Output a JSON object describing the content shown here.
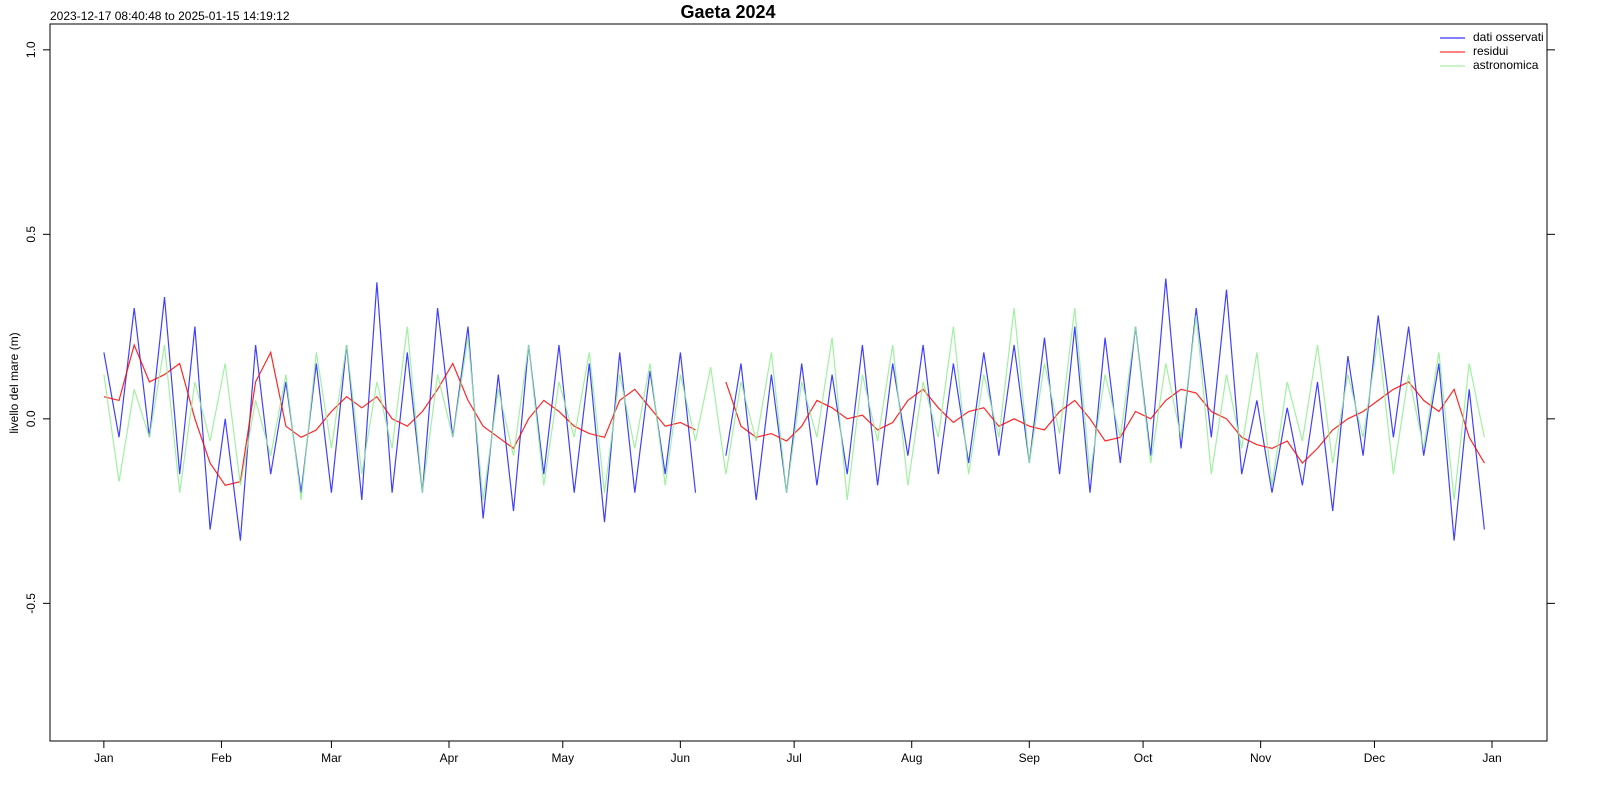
{
  "chart_data": {
    "type": "line",
    "title": "Gaeta 2024",
    "subtitle": "2023-12-17 08:40:48 to 2025-01-15 14:19:12",
    "y_label": "livello del mare (m)",
    "xlim": [
      -14.2,
      380.5
    ],
    "ylim": [
      -0.873,
      1.07
    ],
    "xticks": [
      {
        "value": 0,
        "label": "Jan"
      },
      {
        "value": 31,
        "label": "Feb"
      },
      {
        "value": 60,
        "label": "Mar"
      },
      {
        "value": 91,
        "label": "Apr"
      },
      {
        "value": 121,
        "label": "May"
      },
      {
        "value": 152,
        "label": "Jun"
      },
      {
        "value": 182,
        "label": "Jul"
      },
      {
        "value": 213,
        "label": "Aug"
      },
      {
        "value": 244,
        "label": "Sep"
      },
      {
        "value": 274,
        "label": "Oct"
      },
      {
        "value": 305,
        "label": "Nov"
      },
      {
        "value": 335,
        "label": "Dec"
      },
      {
        "value": 366,
        "label": "Jan"
      }
    ],
    "yticks": [
      -0.5,
      {
        "value": 0,
        "label": "0.0"
      },
      0.5,
      {
        "value": 1,
        "label": "1.0"
      }
    ],
    "legend": "topright",
    "x": [
      0,
      4,
      8,
      12,
      16,
      20,
      24,
      28,
      32,
      36,
      40,
      44,
      48,
      52,
      56,
      60,
      64,
      68,
      72,
      76,
      80,
      84,
      88,
      92,
      96,
      100,
      104,
      108,
      112,
      116,
      120,
      124,
      128,
      132,
      136,
      140,
      144,
      148,
      152,
      156,
      160,
      164,
      168,
      172,
      176,
      180,
      184,
      188,
      192,
      196,
      200,
      204,
      208,
      212,
      216,
      220,
      224,
      228,
      232,
      236,
      240,
      244,
      248,
      252,
      256,
      260,
      264,
      268,
      272,
      276,
      280,
      284,
      288,
      292,
      296,
      300,
      304,
      308,
      312,
      316,
      320,
      324,
      328,
      332,
      336,
      340,
      344,
      348,
      352,
      356,
      360,
      364
    ],
    "series": [
      {
        "name": "dati osservati",
        "color": "#0000ff",
        "values": [
          0.18,
          -0.05,
          0.3,
          -0.05,
          0.33,
          -0.15,
          0.25,
          -0.3,
          0.0,
          -0.33,
          0.2,
          -0.15,
          0.1,
          -0.2,
          0.15,
          -0.2,
          0.2,
          -0.22,
          0.37,
          -0.2,
          0.18,
          -0.2,
          0.3,
          -0.05,
          0.25,
          -0.27,
          0.12,
          -0.25,
          0.2,
          -0.15,
          0.2,
          -0.2,
          0.15,
          -0.28,
          0.18,
          -0.2,
          0.13,
          -0.15,
          0.18,
          -0.2,
          null,
          -0.1,
          0.15,
          -0.22,
          0.12,
          -0.2,
          0.15,
          -0.18,
          0.12,
          -0.15,
          0.2,
          -0.18,
          0.15,
          -0.1,
          0.2,
          -0.15,
          0.15,
          -0.12,
          0.18,
          -0.1,
          0.2,
          -0.12,
          0.22,
          -0.15,
          0.25,
          -0.2,
          0.22,
          -0.12,
          0.25,
          -0.1,
          0.38,
          -0.08,
          0.3,
          -0.05,
          0.35,
          -0.15,
          0.05,
          -0.2,
          0.03,
          -0.18,
          0.1,
          -0.25,
          0.17,
          -0.1,
          0.28,
          -0.05,
          0.25,
          -0.1,
          0.15,
          -0.33,
          0.08,
          -0.3
        ]
      },
      {
        "name": "residui",
        "color": "#ff0000",
        "values": [
          0.06,
          0.05,
          0.2,
          0.1,
          0.12,
          0.15,
          0.0,
          -0.12,
          -0.18,
          -0.17,
          0.1,
          0.18,
          -0.02,
          -0.05,
          -0.03,
          0.02,
          0.06,
          0.03,
          0.06,
          0.0,
          -0.02,
          0.02,
          0.08,
          0.15,
          0.05,
          -0.02,
          -0.05,
          -0.08,
          0.0,
          0.05,
          0.02,
          -0.02,
          -0.04,
          -0.05,
          0.05,
          0.08,
          0.03,
          -0.02,
          -0.01,
          -0.03,
          null,
          0.1,
          -0.02,
          -0.05,
          -0.04,
          -0.06,
          -0.02,
          0.05,
          0.03,
          0.0,
          0.01,
          -0.03,
          -0.01,
          0.05,
          0.08,
          0.03,
          -0.01,
          0.02,
          0.03,
          -0.02,
          0.0,
          -0.02,
          -0.03,
          0.02,
          0.05,
          0.0,
          -0.06,
          -0.05,
          0.02,
          0.0,
          0.05,
          0.08,
          0.07,
          0.02,
          0.0,
          -0.05,
          -0.07,
          -0.08,
          -0.06,
          -0.12,
          -0.08,
          -0.03,
          0.0,
          0.02,
          0.05,
          0.08,
          0.1,
          0.05,
          0.02,
          0.08,
          -0.05,
          -0.12
        ]
      },
      {
        "name": "astronomica",
        "color": "#90ee90",
        "values": [
          0.12,
          -0.17,
          0.08,
          -0.05,
          0.2,
          -0.2,
          0.1,
          -0.06,
          0.15,
          -0.18,
          0.05,
          -0.1,
          0.12,
          -0.22,
          0.18,
          -0.08,
          0.2,
          -0.15,
          0.1,
          -0.08,
          0.25,
          -0.2,
          0.12,
          -0.05,
          0.22,
          -0.22,
          0.08,
          -0.1,
          0.2,
          -0.18,
          0.1,
          -0.05,
          0.18,
          -0.2,
          0.12,
          -0.08,
          0.15,
          -0.18,
          0.12,
          -0.06,
          0.14,
          -0.15,
          0.1,
          -0.06,
          0.18,
          -0.2,
          0.1,
          -0.05,
          0.22,
          -0.22,
          0.12,
          -0.06,
          0.2,
          -0.18,
          0.1,
          -0.05,
          0.25,
          -0.15,
          0.12,
          -0.05,
          0.3,
          -0.12,
          0.15,
          -0.04,
          0.3,
          -0.15,
          0.12,
          -0.05,
          0.25,
          -0.12,
          0.15,
          -0.05,
          0.28,
          -0.15,
          0.12,
          -0.08,
          0.18,
          -0.18,
          0.1,
          -0.06,
          0.2,
          -0.12,
          0.12,
          -0.05,
          0.22,
          -0.15,
          0.12,
          -0.08,
          0.18,
          -0.22,
          0.15,
          -0.05
        ]
      }
    ]
  }
}
